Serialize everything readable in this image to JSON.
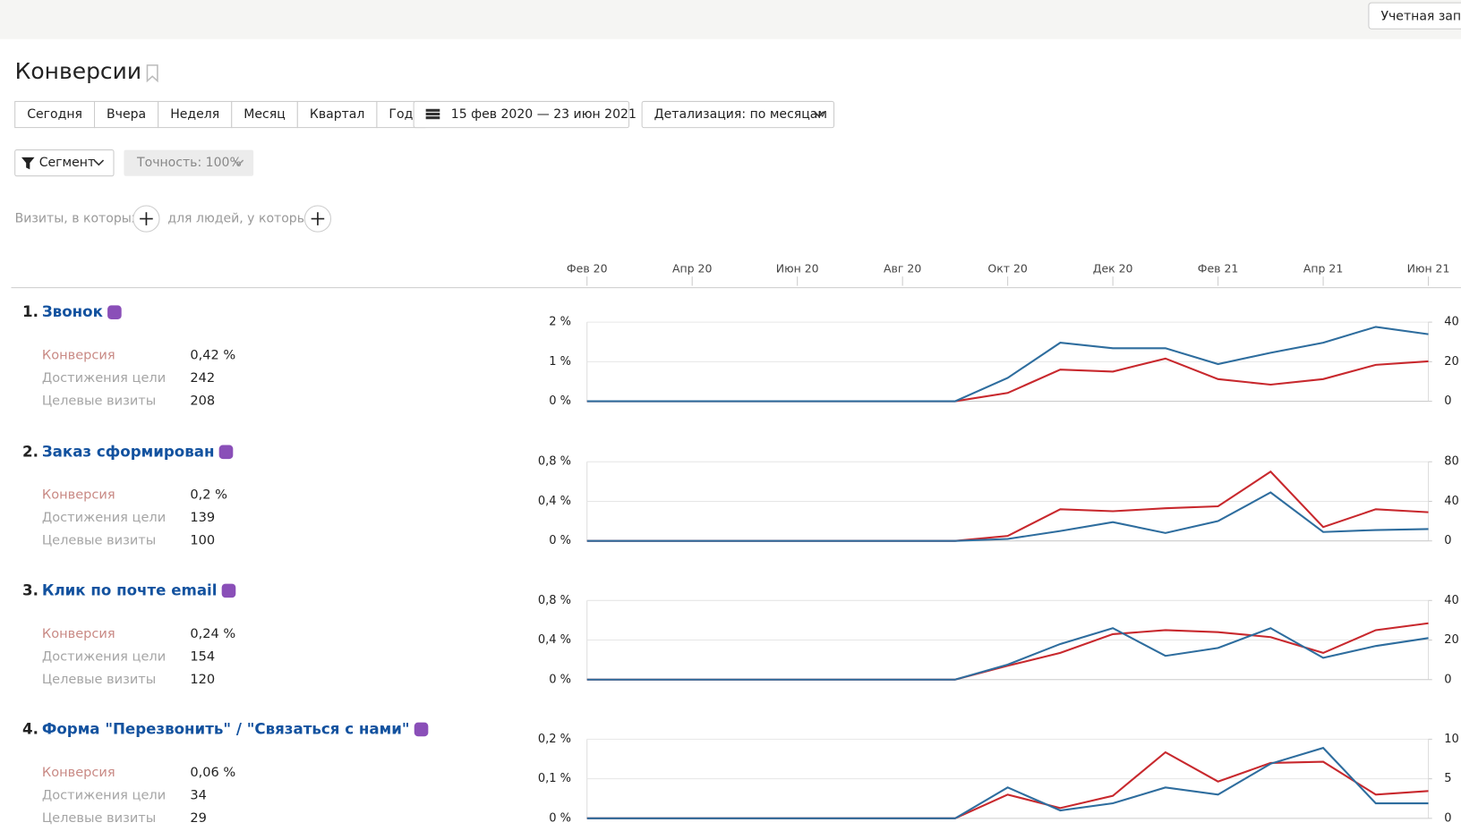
{
  "header": {
    "account": "Учетная запи",
    "title": "Конверсии"
  },
  "toolbar": {
    "periods": [
      "Сегодня",
      "Вчера",
      "Неделя",
      "Месяц",
      "Квартал",
      "Год"
    ],
    "date_range": "15 фев 2020 — 23 июн 2021",
    "detail": "Детализация: по месяцам",
    "segment": "Сегмент",
    "accuracy": "Точность: 100%"
  },
  "filters": {
    "visits": "Визиты, в которых",
    "people": "для людей, у которых"
  },
  "timeline": {
    "categories": [
      "Фев 20",
      null,
      "Апр 20",
      null,
      "Июн 20",
      null,
      "Авг 20",
      null,
      "Окт 20",
      null,
      "Дек 20",
      null,
      "Фев 21",
      null,
      "Апр 21",
      null,
      "Июн 21"
    ]
  },
  "goals": [
    {
      "number": "1.",
      "name": "Звонок",
      "metrics": [
        {
          "label": "Конверсия",
          "value": "0,42 %"
        },
        {
          "label": "Достижения цели",
          "value": 242
        },
        {
          "label": "Целевые визиты",
          "value": 208
        }
      ],
      "chart": {
        "type": "line",
        "ylim": [
          0,
          2
        ],
        "yticks": [
          {
            "value": 0,
            "label": "0 %"
          },
          {
            "value": 1,
            "label": "1 %"
          },
          {
            "value": 2,
            "label": "2 %"
          }
        ],
        "y2lim": [
          0,
          40
        ],
        "y2ticks": [
          0,
          20,
          40
        ],
        "grid": true,
        "series": [
          {
            "color": "#c8282d",
            "values": [
              0,
              0,
              0,
              0,
              0,
              0,
              0,
              0,
              0.21,
              0.8,
              0.75,
              1.08,
              0.56,
              0.42,
              0.56,
              0.92,
              1.01
            ]
          },
          {
            "color": "#2e6d9e",
            "axis": "y2",
            "values": [
              0,
              0,
              0,
              0,
              0,
              0,
              0,
              0,
              11.8,
              29.6,
              26.8,
              26.8,
              18.8,
              24.5,
              29.6,
              37.6,
              33.9
            ]
          }
        ]
      }
    },
    {
      "number": "2.",
      "name": "Заказ сформирован",
      "metrics": [
        {
          "label": "Конверсия",
          "value": "0,2 %"
        },
        {
          "label": "Достижения цели",
          "value": 139
        },
        {
          "label": "Целевые визиты",
          "value": 100
        }
      ],
      "chart": {
        "type": "line",
        "ylim": [
          0,
          0.8
        ],
        "yticks": [
          {
            "value": 0,
            "label": "0 %"
          },
          {
            "value": 0.4,
            "label": "0,4 %"
          },
          {
            "value": 0.8,
            "label": "0,8 %"
          }
        ],
        "y2lim": [
          0,
          80
        ],
        "y2ticks": [
          0,
          40,
          80
        ],
        "grid": true,
        "series": [
          {
            "color": "#c8282d",
            "values": [
              0,
              0,
              0,
              0,
              0,
              0,
              0,
              0,
              0.05,
              0.32,
              0.3,
              0.33,
              0.35,
              0.7,
              0.14,
              0.32,
              0.29
            ]
          },
          {
            "color": "#2e6d9e",
            "axis": "y2",
            "values": [
              0,
              0,
              0,
              0,
              0,
              0,
              0,
              0,
              2,
              10,
              19,
              8,
              20,
              49,
              9,
              11,
              12
            ]
          }
        ]
      }
    },
    {
      "number": "3.",
      "name": "Клик по почте email",
      "metrics": [
        {
          "label": "Конверсия",
          "value": "0,24 %"
        },
        {
          "label": "Достижения цели",
          "value": 154
        },
        {
          "label": "Целевые визиты",
          "value": 120
        }
      ],
      "chart": {
        "type": "line",
        "ylim": [
          0,
          0.8
        ],
        "yticks": [
          {
            "value": 0,
            "label": "0 %"
          },
          {
            "value": 0.4,
            "label": "0,4 %"
          },
          {
            "value": 0.8,
            "label": "0,8 %"
          }
        ],
        "y2lim": [
          0,
          40
        ],
        "y2ticks": [
          0,
          20,
          40
        ],
        "grid": true,
        "series": [
          {
            "color": "#c8282d",
            "values": [
              0,
              0,
              0,
              0,
              0,
              0,
              0,
              0,
              0.14,
              0.27,
              0.46,
              0.5,
              0.48,
              0.43,
              0.27,
              0.5,
              0.57
            ]
          },
          {
            "color": "#2e6d9e",
            "axis": "y2",
            "values": [
              0,
              0,
              0,
              0,
              0,
              0,
              0,
              0,
              7.6,
              18,
              26,
              12,
              16,
              26,
              11,
              17,
              21
            ]
          }
        ]
      }
    },
    {
      "number": "4.",
      "name": "Форма \"Перезвонить\" / \"Связаться с нами\"",
      "metrics": [
        {
          "label": "Конверсия",
          "value": "0,06 %"
        },
        {
          "label": "Достижения цели",
          "value": 34
        },
        {
          "label": "Целевые визиты",
          "value": 29
        }
      ],
      "chart": {
        "type": "line",
        "ylim": [
          0,
          0.2
        ],
        "yticks": [
          {
            "value": 0,
            "label": "0 %"
          },
          {
            "value": 0.1,
            "label": "0,1 %"
          },
          {
            "value": 0.2,
            "label": "0,2 %"
          }
        ],
        "y2lim": [
          0,
          10
        ],
        "y2ticks": [
          0,
          5,
          10
        ],
        "grid": true,
        "series": [
          {
            "color": "#c8282d",
            "values": [
              0,
              0,
              0,
              0,
              0,
              0,
              0,
              0,
              0.06,
              0.026,
              0.057,
              0.167,
              0.093,
              0.14,
              0.143,
              0.06,
              0.069
            ]
          },
          {
            "color": "#2e6d9e",
            "axis": "y2",
            "values": [
              0,
              0,
              0,
              0,
              0,
              0,
              0,
              0,
              3.9,
              1,
              1.9,
              3.9,
              3,
              6.9,
              8.9,
              1.9,
              1.9
            ]
          }
        ]
      }
    }
  ]
}
